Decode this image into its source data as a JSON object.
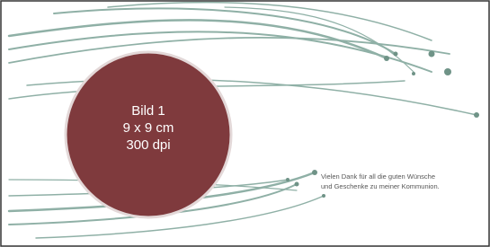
{
  "placeholder": {
    "lines": [
      "Bild 1",
      "9 x 9 cm",
      "300 dpi"
    ]
  },
  "message": {
    "lines": [
      "Vielen Dank für all die guten Wünsche",
      "und Geschenke zu meiner Kommunion."
    ]
  }
}
